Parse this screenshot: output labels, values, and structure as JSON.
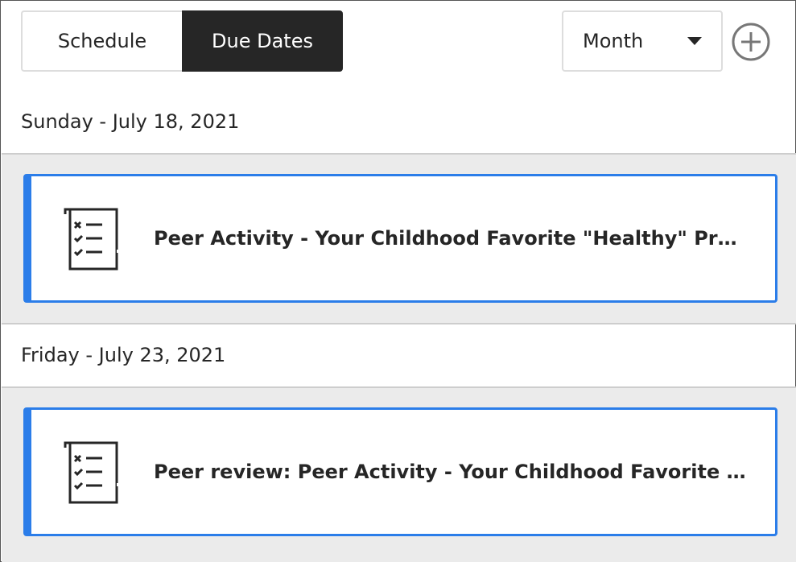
{
  "tabs": [
    {
      "label": "Schedule",
      "active": false
    },
    {
      "label": "Due Dates",
      "active": true
    }
  ],
  "view_select": {
    "value": "Month"
  },
  "add_button": {
    "icon": "plus-circle-icon"
  },
  "colors": {
    "accent": "#2b7de9",
    "active_tab": "#262626",
    "band": "#ebebeb"
  },
  "groups": [
    {
      "date": "Sunday - July 18, 2021",
      "items": [
        {
          "icon": "checklist-icon",
          "title": "Peer Activity - Your Childhood Favorite \"Healthy\" Product"
        }
      ]
    },
    {
      "date": "Friday - July 23, 2021",
      "items": [
        {
          "icon": "checklist-icon",
          "title": "Peer review: Peer Activity - Your Childhood Favorite \"Healthy\" Product"
        }
      ]
    }
  ]
}
